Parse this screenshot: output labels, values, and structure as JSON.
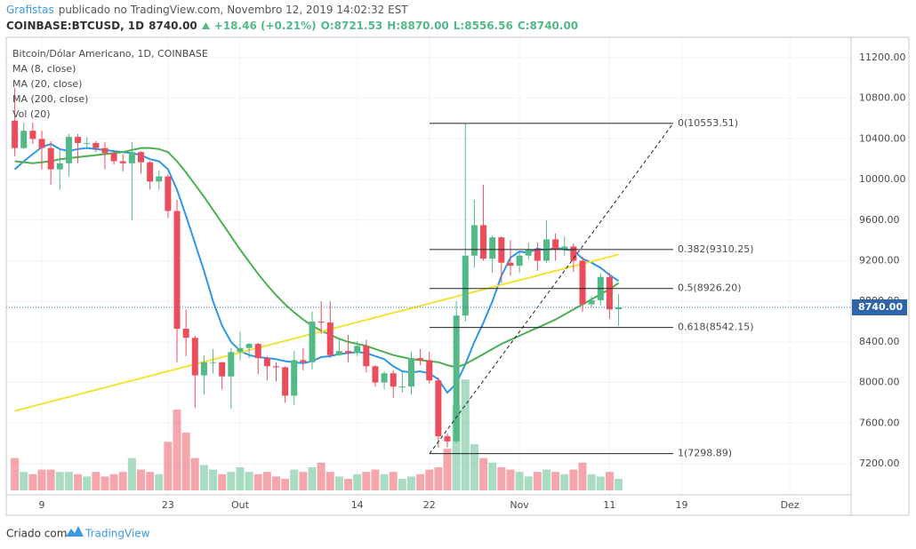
{
  "header": {
    "author": "Grafistas",
    "published": "publicado no TradingView.com, Novembro 12, 2019 14:02:32 EST",
    "symbol": "COINBASE:BTCUSD, 1D",
    "price": "8740.00",
    "change": "+18.46 (+0.21%)",
    "open": "O:8721.53",
    "high": "H:8870.00",
    "low": "L:8556.56",
    "close": "C:8740.00"
  },
  "chart_data": {
    "type": "candlestick",
    "title": "Bitcoin/Dólar Americano, 1D, COINBASE",
    "up_color": "#53b987",
    "down_color": "#eb4d5c",
    "ohlc": [
      [
        10580,
        10900,
        10230,
        10310
      ],
      [
        10310,
        10560,
        10300,
        10480
      ],
      [
        10480,
        10560,
        10350,
        10400
      ],
      [
        10400,
        10480,
        10100,
        10310
      ],
      [
        10310,
        10380,
        9950,
        10100
      ],
      [
        10100,
        10290,
        9900,
        10160
      ],
      [
        10160,
        10450,
        10030,
        10420
      ],
      [
        10420,
        10450,
        10160,
        10360
      ],
      [
        10360,
        10420,
        10300,
        10360
      ],
      [
        10360,
        10380,
        10270,
        10310
      ],
      [
        10310,
        10370,
        10100,
        10260
      ],
      [
        10260,
        10280,
        10150,
        10180
      ],
      [
        10180,
        10250,
        10080,
        10160
      ],
      [
        10160,
        10370,
        9600,
        10270
      ],
      [
        10270,
        10280,
        10060,
        10170
      ],
      [
        10170,
        10180,
        9900,
        9980
      ],
      [
        9980,
        10090,
        9900,
        10030
      ],
      [
        10030,
        10050,
        9620,
        9690
      ],
      [
        9690,
        9800,
        8200,
        8530
      ],
      [
        8530,
        8720,
        8260,
        8440
      ],
      [
        8440,
        8460,
        7750,
        8070
      ],
      [
        8070,
        8270,
        7880,
        8200
      ],
      [
        8200,
        8330,
        8090,
        8200
      ],
      [
        8200,
        8200,
        7930,
        8060
      ],
      [
        8060,
        8340,
        7740,
        8300
      ],
      [
        8300,
        8500,
        8220,
        8340
      ],
      [
        8340,
        8390,
        8240,
        8380
      ],
      [
        8380,
        8390,
        8080,
        8240
      ],
      [
        8240,
        8260,
        8020,
        8160
      ],
      [
        8160,
        8200,
        8010,
        8150
      ],
      [
        8150,
        8160,
        7800,
        7870
      ],
      [
        7870,
        8310,
        7780,
        8220
      ],
      [
        8220,
        8340,
        8120,
        8200
      ],
      [
        8200,
        8700,
        8130,
        8600
      ],
      [
        8600,
        8800,
        8480,
        8590
      ],
      [
        8590,
        8800,
        8240,
        8270
      ],
      [
        8270,
        8420,
        8260,
        8310
      ],
      [
        8310,
        8470,
        8200,
        8290
      ],
      [
        8290,
        8410,
        8260,
        8360
      ],
      [
        8360,
        8420,
        8100,
        8160
      ],
      [
        8160,
        8170,
        7960,
        8000
      ],
      [
        8000,
        8110,
        7930,
        8090
      ],
      [
        8090,
        8120,
        7850,
        7960
      ],
      [
        7960,
        8100,
        7900,
        7960
      ],
      [
        7960,
        8300,
        7880,
        8240
      ],
      [
        8240,
        8330,
        8170,
        8220
      ],
      [
        8220,
        8300,
        7990,
        8020
      ],
      [
        8020,
        8050,
        7360,
        7470
      ],
      [
        7470,
        7500,
        7360,
        7420
      ],
      [
        7420,
        8800,
        7400,
        8660
      ],
      [
        8660,
        10550,
        8600,
        9250
      ],
      [
        9250,
        9800,
        9130,
        9550
      ],
      [
        9550,
        9950,
        9200,
        9220
      ],
      [
        9220,
        9450,
        9080,
        9430
      ],
      [
        9430,
        9440,
        8980,
        9180
      ],
      [
        9180,
        9400,
        9050,
        9150
      ],
      [
        9150,
        9280,
        9080,
        9250
      ],
      [
        9250,
        9380,
        9210,
        9310
      ],
      [
        9310,
        9380,
        9100,
        9200
      ],
      [
        9200,
        9600,
        9180,
        9410
      ],
      [
        9410,
        9470,
        9200,
        9310
      ],
      [
        9310,
        9440,
        9250,
        9340
      ],
      [
        9340,
        9370,
        9090,
        9200
      ],
      [
        9200,
        9240,
        8700,
        8770
      ],
      [
        8770,
        8850,
        8740,
        8810
      ],
      [
        8810,
        9080,
        8760,
        9040
      ],
      [
        9040,
        9080,
        8630,
        8720
      ],
      [
        8721.53,
        8870,
        8556.56,
        8740
      ]
    ],
    "series": [
      {
        "name": "MA (8, close)",
        "color": "#2e96e6",
        "values": [
          10100,
          10180,
          10250,
          10320,
          10350,
          10300,
          10280,
          10300,
          10310,
          10300,
          10290,
          10280,
          10270,
          10260,
          10240,
          10200,
          10180,
          10100,
          9900,
          9640,
          9370,
          9100,
          8800,
          8560,
          8400,
          8310,
          8270,
          8250,
          8240,
          8230,
          8210,
          8200,
          8190,
          8210,
          8250,
          8260,
          8280,
          8290,
          8300,
          8290,
          8260,
          8230,
          8160,
          8110,
          8100,
          8110,
          8090,
          8030,
          7900,
          7990,
          8180,
          8400,
          8590,
          8800,
          9050,
          9230,
          9290,
          9280,
          9320,
          9300,
          9330,
          9310,
          9300,
          9220,
          9180,
          9130,
          9060,
          9000
        ]
      },
      {
        "name": "MA (20, close)",
        "color": "#4caf50",
        "values": [
          10180,
          10170,
          10160,
          10170,
          10180,
          10200,
          10210,
          10220,
          10230,
          10240,
          10250,
          10260,
          10270,
          10290,
          10310,
          10310,
          10300,
          10270,
          10180,
          10070,
          9950,
          9830,
          9700,
          9570,
          9440,
          9310,
          9190,
          9070,
          8960,
          8860,
          8770,
          8690,
          8620,
          8560,
          8510,
          8470,
          8430,
          8400,
          8380,
          8360,
          8330,
          8300,
          8270,
          8250,
          8230,
          8220,
          8210,
          8200,
          8170,
          8150,
          8180,
          8230,
          8280,
          8330,
          8380,
          8420,
          8460,
          8500,
          8540,
          8580,
          8620,
          8670,
          8720,
          8770,
          8820,
          8870,
          8920,
          8980
        ]
      },
      {
        "name": "MA (200, close)",
        "color": "#f4e23a",
        "values": [
          7720,
          7743,
          7766,
          7789,
          7812,
          7835,
          7858,
          7881,
          7904,
          7927,
          7950,
          7973,
          7996,
          8019,
          8042,
          8065,
          8088,
          8111,
          8134,
          8157,
          8180,
          8203,
          8226,
          8249,
          8272,
          8295,
          8318,
          8341,
          8364,
          8387,
          8410,
          8433,
          8456,
          8479,
          8502,
          8525,
          8548,
          8571,
          8594,
          8617,
          8640,
          8663,
          8686,
          8709,
          8732,
          8755,
          8778,
          8801,
          8824,
          8847,
          8870,
          8893,
          8916,
          8939,
          8962,
          8985,
          9008,
          9031,
          9054,
          9077,
          9100,
          9123,
          9146,
          9169,
          9192,
          9215,
          9238,
          9261
        ]
      }
    ],
    "volume": {
      "name": "Vol (20)",
      "ylim": [
        0,
        50
      ],
      "values": [
        14,
        8,
        7,
        9,
        9,
        8,
        8,
        7,
        6,
        8,
        6,
        7,
        8,
        14,
        9,
        8,
        7,
        21,
        35,
        25,
        14,
        11,
        9,
        7,
        8,
        10,
        8,
        7,
        8,
        6,
        5,
        9,
        8,
        10,
        12,
        8,
        6,
        5,
        7,
        8,
        9,
        7,
        8,
        5,
        6,
        7,
        9,
        10,
        18,
        37,
        48,
        20,
        14,
        12,
        10,
        9,
        8,
        6,
        8,
        9,
        8,
        7,
        9,
        12,
        7,
        6,
        8,
        5
      ]
    },
    "xlim": [
      -0.95,
      92.8
    ],
    "xticks": [
      {
        "value": 3,
        "label": "9"
      },
      {
        "value": 17,
        "label": "23"
      },
      {
        "value": 25,
        "label": "Out"
      },
      {
        "value": 38,
        "label": "14"
      },
      {
        "value": 46,
        "label": "22"
      },
      {
        "value": 56,
        "label": "Nov"
      },
      {
        "value": 66,
        "label": "11"
      },
      {
        "value": 74,
        "label": "19"
      },
      {
        "value": 86,
        "label": "Dez"
      }
    ],
    "ylim": [
      6692,
      11401
    ],
    "yticks": [
      {
        "value": 7200,
        "label": "7200.00"
      },
      {
        "value": 7600,
        "label": "7600.00"
      },
      {
        "value": 8000,
        "label": "8000.00"
      },
      {
        "value": 8400,
        "label": "8400.00"
      },
      {
        "value": 8800,
        "label": "8800.00"
      },
      {
        "value": 9200,
        "label": "9200.00"
      },
      {
        "value": 9600,
        "label": "9600.00"
      },
      {
        "value": 10000,
        "label": "10000.00"
      },
      {
        "value": 10400,
        "label": "10400.00"
      },
      {
        "value": 10800,
        "label": "10800.00"
      },
      {
        "value": 11200,
        "label": "11200.00"
      }
    ],
    "last_price": {
      "value": 8740,
      "label": "8740.00"
    },
    "fib": [
      {
        "value": 10553.51,
        "label": "0(10553.51)"
      },
      {
        "value": 9310.25,
        "label": "0.382(9310.25)"
      },
      {
        "value": 8926.2,
        "label": "0.5(8926.20)"
      },
      {
        "value": 8542.15,
        "label": "0.618(8542.15)"
      },
      {
        "value": 7298.89,
        "label": "1(7298.89)"
      }
    ]
  },
  "footer": {
    "created": "Criado com",
    "brand": "TradingView"
  }
}
